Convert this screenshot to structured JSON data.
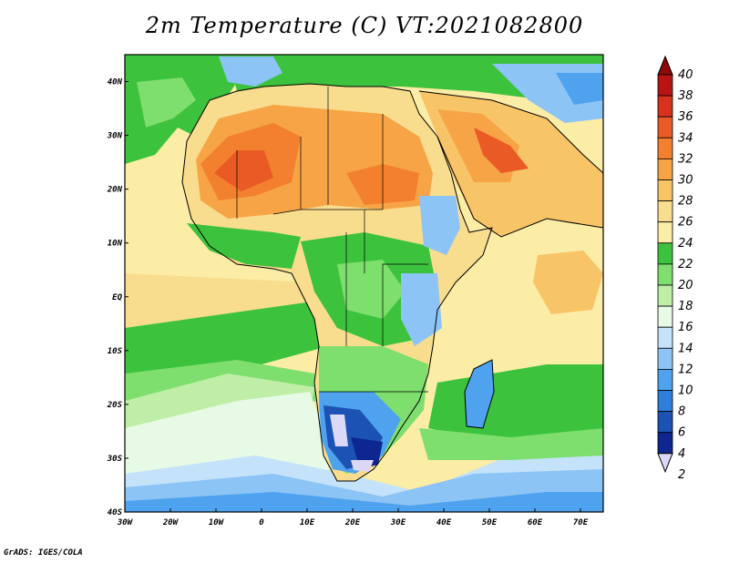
{
  "title": "2m Temperature (C) VT:2021082800",
  "credit": "GrADS: IGES/COLA",
  "lon_ticks": [
    "30W",
    "20W",
    "10W",
    "0",
    "10E",
    "20E",
    "30E",
    "40E",
    "50E",
    "60E",
    "70E"
  ],
  "lat_ticks": [
    "40N",
    "30N",
    "20N",
    "10N",
    "EQ",
    "10S",
    "20S",
    "30S",
    "40S"
  ],
  "colorbar": {
    "labels": [
      "40",
      "38",
      "36",
      "34",
      "32",
      "30",
      "28",
      "26",
      "24",
      "22",
      "20",
      "18",
      "16",
      "14",
      "12",
      "10",
      "8",
      "6",
      "4",
      "2"
    ],
    "colors": [
      "#8c0a0a",
      "#b81414",
      "#d8311c",
      "#ea5a24",
      "#f2802e",
      "#f6a446",
      "#f8c468",
      "#f9dd8e",
      "#fbeca6",
      "#3cc23c",
      "#7ede6e",
      "#bfeea6",
      "#e6fae6",
      "#c4e2fa",
      "#8cc4f6",
      "#4ea2ee",
      "#2e7fdc",
      "#1c52b4",
      "#0e2690",
      "#dcd8f8"
    ]
  },
  "chart_data": {
    "type": "heatmap",
    "variable": "2m Temperature (C)",
    "valid_time": "2021082800",
    "lon_range": [
      -30,
      75
    ],
    "lat_range": [
      -40,
      45
    ],
    "color_levels": [
      2,
      4,
      6,
      8,
      10,
      12,
      14,
      16,
      18,
      20,
      22,
      24,
      26,
      28,
      30,
      32,
      34,
      36,
      38,
      40
    ]
  }
}
